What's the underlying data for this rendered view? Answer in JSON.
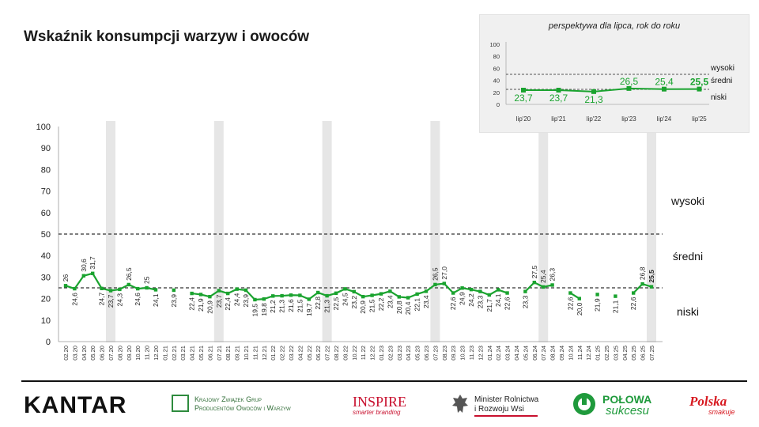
{
  "title": "Wskaźnik konsumpcji warzyw i owoców",
  "chart_data": [
    {
      "type": "line",
      "title": "Wskaźnik konsumpcji warzyw i owoców",
      "ylim": [
        0,
        100
      ],
      "yticks": [
        0,
        10,
        20,
        30,
        40,
        50,
        60,
        70,
        80,
        90,
        100
      ],
      "grid": false,
      "reference_lines": [
        {
          "value": 50,
          "style": "dashed"
        },
        {
          "value": 25,
          "style": "dashed"
        }
      ],
      "zone_labels": [
        "wysoki",
        "średni",
        "niski"
      ],
      "x": [
        "02.20",
        "03.20",
        "04.20",
        "05.20",
        "06.20",
        "07.20",
        "08.20",
        "09.20",
        "10.20",
        "11.20",
        "12.20",
        "01.21",
        "02.21",
        "03.21",
        "04.21",
        "05.21",
        "06.21",
        "07.21",
        "08.21",
        "09.21",
        "10.21",
        "11.21",
        "12.21",
        "01.22",
        "02.22",
        "03.22",
        "04.22",
        "05.22",
        "06.22",
        "07.22",
        "08.22",
        "09.22",
        "10.22",
        "11.22",
        "12.22",
        "01.23",
        "02.23",
        "03.23",
        "04.23",
        "05.23",
        "06.23",
        "07.23",
        "08.23",
        "09.23",
        "10.23",
        "11.23",
        "12.23",
        "01.24",
        "02.24",
        "03.24",
        "04.24",
        "05.24",
        "06.24",
        "07.24",
        "08.24",
        "09.24",
        "10.24",
        "11.24",
        "12.24",
        "01.25",
        "02.25",
        "03.25",
        "04.25",
        "05.25",
        "06.25",
        "07.25"
      ],
      "highlighted_months": [
        "07.20",
        "07.21",
        "07.22",
        "07.23",
        "07.24",
        "07.25"
      ],
      "series": [
        {
          "color": "#1aa32f",
          "values": [
            26,
            24.6,
            30.6,
            31.7,
            24.7,
            23.7,
            24.3,
            26.5,
            24.6,
            25,
            24.1,
            null,
            23.9,
            null,
            22.4,
            21.9,
            20.9,
            23.7,
            22.4,
            24.4,
            23.9,
            19.5,
            19.8,
            21.2,
            21.3,
            21.6,
            21.5,
            19.7,
            22.8,
            21.3,
            22.5,
            24.5,
            23.2,
            20.9,
            21.5,
            22.2,
            23.4,
            20.8,
            20.4,
            22.1,
            23.4,
            26.5,
            27.0,
            22.6,
            24.9,
            24.2,
            23.3,
            21.7,
            24.1,
            22.6,
            null,
            23.3,
            27.5,
            25.4,
            26.3,
            null,
            22.6,
            20.0,
            null,
            21.9,
            null,
            21.1,
            null,
            22.6,
            26.8,
            25.5
          ],
          "labels": [
            "26",
            "24,6",
            "30,6",
            "31,7",
            "24,7",
            "23,7",
            "24,3",
            "26,5",
            "24,6",
            "25",
            "24,1",
            "",
            "23,9",
            "",
            "22,4",
            "21,9",
            "20,9",
            "23,7",
            "22,4",
            "24,4",
            "23,9",
            "19,5",
            "19,8",
            "21,2",
            "21,3",
            "21,6",
            "21,5",
            "19,7",
            "22,8",
            "21,3",
            "22,5",
            "24,5",
            "23,2",
            "20,9",
            "21,5",
            "22,2",
            "23,4",
            "20,8",
            "20,4",
            "22,1",
            "23,4",
            "26,5",
            "27,0",
            "22,6",
            "24,9",
            "24,2",
            "23,3",
            "21,7",
            "24,1",
            "22,6",
            "",
            "23,3",
            "27,5",
            "25,4",
            "26,3",
            "",
            "22,6",
            "20,0",
            "",
            "21,9",
            "",
            "21,1",
            "",
            "22,6",
            "26,8",
            "25,5"
          ]
        }
      ]
    },
    {
      "type": "line",
      "title": "perspektywa dla lipca, rok do roku",
      "ylim": [
        0,
        100
      ],
      "yticks": [
        0,
        20,
        40,
        60,
        80,
        100
      ],
      "reference_lines": [
        {
          "value": 50,
          "style": "dashed"
        },
        {
          "value": 25,
          "style": "dashed"
        }
      ],
      "zone_labels": [
        "wysoki",
        "średni",
        "niski"
      ],
      "categories": [
        "lip'20",
        "lip'21",
        "lip'22",
        "lip'23",
        "lip'24",
        "lip'25"
      ],
      "series": [
        {
          "color": "#1aa32f",
          "values": [
            23.7,
            23.7,
            21.3,
            26.5,
            25.4,
            25.5
          ],
          "labels": [
            "23,7",
            "23,7",
            "21,3",
            "26,5",
            "25,4",
            "25,5"
          ]
        }
      ]
    }
  ],
  "footer": {
    "kantar": "KANTAR",
    "kzgp_line1": "Krajowy Związek Grup",
    "kzgp_line2": "Producentów Owoców i Warzyw",
    "inspire": "INSPIRE",
    "inspire_sub": "smarter branding",
    "minister_line1": "Minister Rolnictwa",
    "minister_line2": "i Rozwoju Wsi",
    "polowa_line1": "POŁOWA",
    "polowa_line2": "sukcesu",
    "polska_line1": "Polska",
    "polska_line2": "smakuje"
  }
}
